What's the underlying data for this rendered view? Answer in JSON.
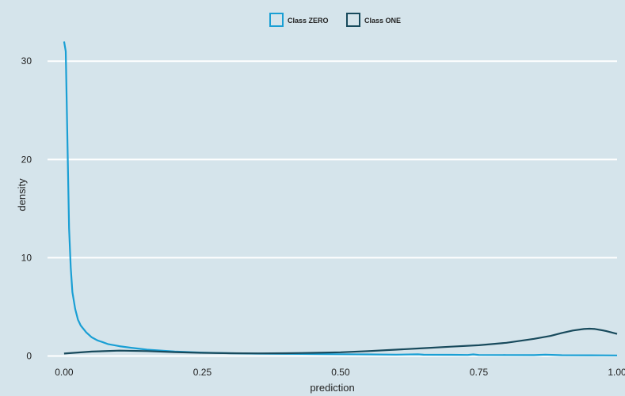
{
  "chart_data": {
    "type": "line",
    "xlabel": "prediction",
    "ylabel": "density",
    "xlim": [
      -0.03,
      1.0
    ],
    "ylim": [
      -0.2,
      33.0
    ],
    "x_ticks": [
      "0.00",
      "0.25",
      "0.50",
      "0.75",
      "1.00"
    ],
    "x_tick_values": [
      0,
      0.25,
      0.5,
      0.75,
      1.0
    ],
    "y_ticks": [
      "0",
      "10",
      "20",
      "30"
    ],
    "y_tick_values": [
      0,
      10,
      20,
      30
    ],
    "grid": "horizontal",
    "legend_position": "top",
    "series": [
      {
        "name": "Class ZERO",
        "color": "#1a9fd4",
        "x": [
          0.0,
          0.003,
          0.006,
          0.009,
          0.012,
          0.015,
          0.02,
          0.025,
          0.03,
          0.04,
          0.05,
          0.06,
          0.07,
          0.08,
          0.1,
          0.12,
          0.15,
          0.2,
          0.25,
          0.3,
          0.35,
          0.4,
          0.45,
          0.5,
          0.55,
          0.6,
          0.64,
          0.65,
          0.7,
          0.73,
          0.74,
          0.75,
          0.8,
          0.85,
          0.87,
          0.9,
          0.95,
          1.0
        ],
        "y": [
          32.0,
          31.0,
          22.0,
          13.0,
          9.0,
          6.5,
          4.8,
          3.7,
          3.1,
          2.4,
          1.9,
          1.6,
          1.4,
          1.2,
          1.0,
          0.85,
          0.65,
          0.45,
          0.35,
          0.28,
          0.24,
          0.22,
          0.2,
          0.18,
          0.16,
          0.14,
          0.17,
          0.13,
          0.12,
          0.11,
          0.16,
          0.11,
          0.1,
          0.09,
          0.14,
          0.08,
          0.07,
          0.06
        ]
      },
      {
        "name": "Class ONE",
        "color": "#184a5c",
        "x": [
          0.0,
          0.05,
          0.1,
          0.15,
          0.2,
          0.25,
          0.3,
          0.35,
          0.4,
          0.45,
          0.5,
          0.55,
          0.6,
          0.65,
          0.7,
          0.75,
          0.8,
          0.85,
          0.88,
          0.9,
          0.92,
          0.94,
          0.95,
          0.96,
          0.98,
          1.0
        ],
        "y": [
          0.25,
          0.45,
          0.55,
          0.5,
          0.4,
          0.32,
          0.28,
          0.27,
          0.28,
          0.32,
          0.38,
          0.5,
          0.65,
          0.8,
          0.95,
          1.1,
          1.35,
          1.75,
          2.05,
          2.35,
          2.6,
          2.75,
          2.78,
          2.75,
          2.55,
          2.25
        ]
      }
    ]
  }
}
